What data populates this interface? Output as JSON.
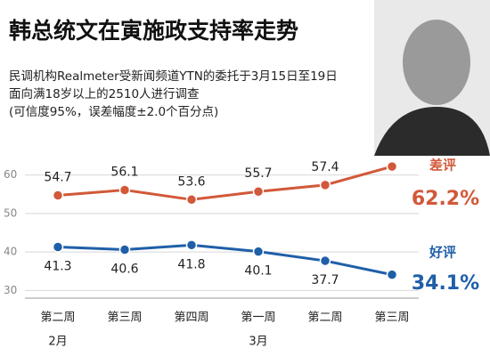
{
  "chart_data": {
    "type": "line",
    "title": "韩总统文在寅施政支持率走势",
    "subtitle": [
      "民调机构Realmeter受新闻频道YTN的委托于3月15日至19日",
      "面向满18岁以上的2510人进行调查",
      "(可信度95%，误差幅度±2.0个百分点)"
    ],
    "categories": [
      "第二周",
      "第三周",
      "第四周",
      "第一周",
      "第二周",
      "第三周"
    ],
    "month_labels": [
      "2月",
      "3月"
    ],
    "series": [
      {
        "name": "差评",
        "color": "#d2583a",
        "values": [
          54.7,
          56.1,
          53.6,
          55.7,
          57.4,
          62.2
        ],
        "value_labels": [
          "54.7",
          "56.1",
          "53.6",
          "55.7",
          "57.4",
          "62.2%"
        ]
      },
      {
        "name": "好评",
        "color": "#1f5fa8",
        "values": [
          41.3,
          40.6,
          41.8,
          40.1,
          37.7,
          34.1
        ],
        "value_labels": [
          "41.3",
          "40.6",
          "41.8",
          "40.1",
          "37.7",
          "34.1%"
        ]
      }
    ],
    "ylim": [
      28,
      65
    ],
    "yticks": [
      30,
      40,
      50,
      60
    ],
    "grid": true
  }
}
